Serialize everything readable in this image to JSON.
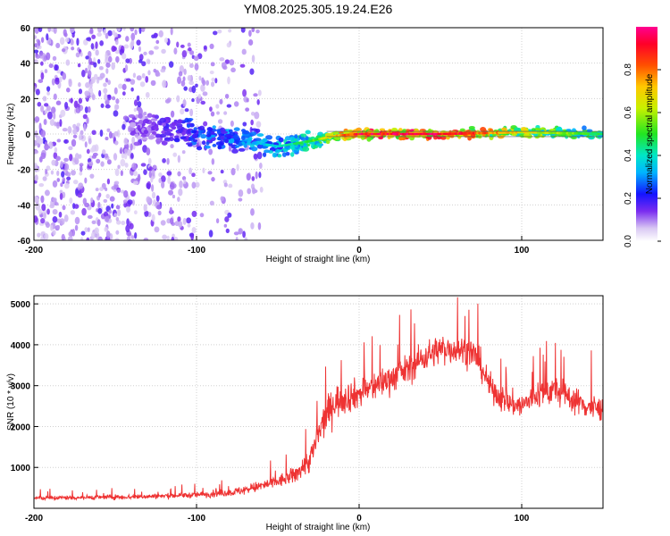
{
  "title": "YM08.2025.305.19.24.E26",
  "chart_data": [
    {
      "type": "heatmap",
      "xlabel": "Height of straight line (km)",
      "ylabel": "Frequency (Hz)",
      "xlim": [
        -200,
        150
      ],
      "ylim": [
        -60,
        60
      ],
      "x_ticks": [
        -200,
        -100,
        0,
        100
      ],
      "y_ticks": [
        -60,
        -40,
        -20,
        0,
        20,
        40,
        60
      ],
      "colorbar": {
        "label": "Normalized spectral amplitude",
        "range": [
          0.0,
          1.0
        ],
        "ticks": [
          "0.0",
          "0.2",
          "0.4",
          "0.6",
          "0.8"
        ],
        "tick_values": [
          0.0,
          0.2,
          0.4,
          0.6,
          0.8
        ]
      },
      "grid": true,
      "description_series": [
        {
          "name": "noise_region",
          "x_range": [
            -200,
            -70
          ],
          "freq_range": [
            -60,
            60
          ],
          "amplitude": 0.05
        },
        {
          "name": "signal_ridge",
          "x": [
            -130,
            -100,
            -70,
            -50,
            -30,
            -15,
            0,
            50,
            100,
            150
          ],
          "freq": [
            3,
            0,
            -4,
            -7,
            -4,
            -1,
            0,
            0,
            1,
            0
          ],
          "amplitude": [
            0.15,
            0.3,
            0.35,
            0.4,
            0.5,
            0.75,
            0.95,
            1.0,
            0.7,
            0.5
          ]
        }
      ]
    },
    {
      "type": "line",
      "xlabel": "Height of straight line (km)",
      "ylabel": "SNR (10 * v/v)",
      "xlim": [
        -200,
        150
      ],
      "ylim": [
        0,
        5200
      ],
      "x_ticks": [
        -200,
        -100,
        0,
        100
      ],
      "y_ticks": [
        1000,
        2000,
        3000,
        4000,
        5000
      ],
      "grid": true,
      "color": "#ee3333",
      "series": [
        {
          "name": "SNR",
          "x": [
            -200,
            -180,
            -160,
            -140,
            -120,
            -100,
            -80,
            -70,
            -60,
            -50,
            -40,
            -30,
            -25,
            -20,
            -15,
            -10,
            0,
            10,
            20,
            30,
            40,
            50,
            60,
            70,
            75,
            80,
            90,
            100,
            110,
            120,
            130,
            140,
            150
          ],
          "values": [
            250,
            260,
            270,
            280,
            300,
            330,
            380,
            450,
            550,
            650,
            800,
            1200,
            1800,
            2300,
            2600,
            2700,
            2800,
            3000,
            3200,
            3400,
            3700,
            3900,
            3900,
            3800,
            3500,
            3000,
            2600,
            2500,
            2800,
            2900,
            2700,
            2500,
            2400
          ],
          "spread": [
            120,
            120,
            130,
            130,
            140,
            160,
            200,
            250,
            300,
            350,
            450,
            700,
            900,
            900,
            900,
            900,
            800,
            800,
            800,
            800,
            800,
            800,
            800,
            800,
            800,
            700,
            700,
            700,
            800,
            800,
            700,
            700,
            700
          ]
        }
      ]
    }
  ]
}
